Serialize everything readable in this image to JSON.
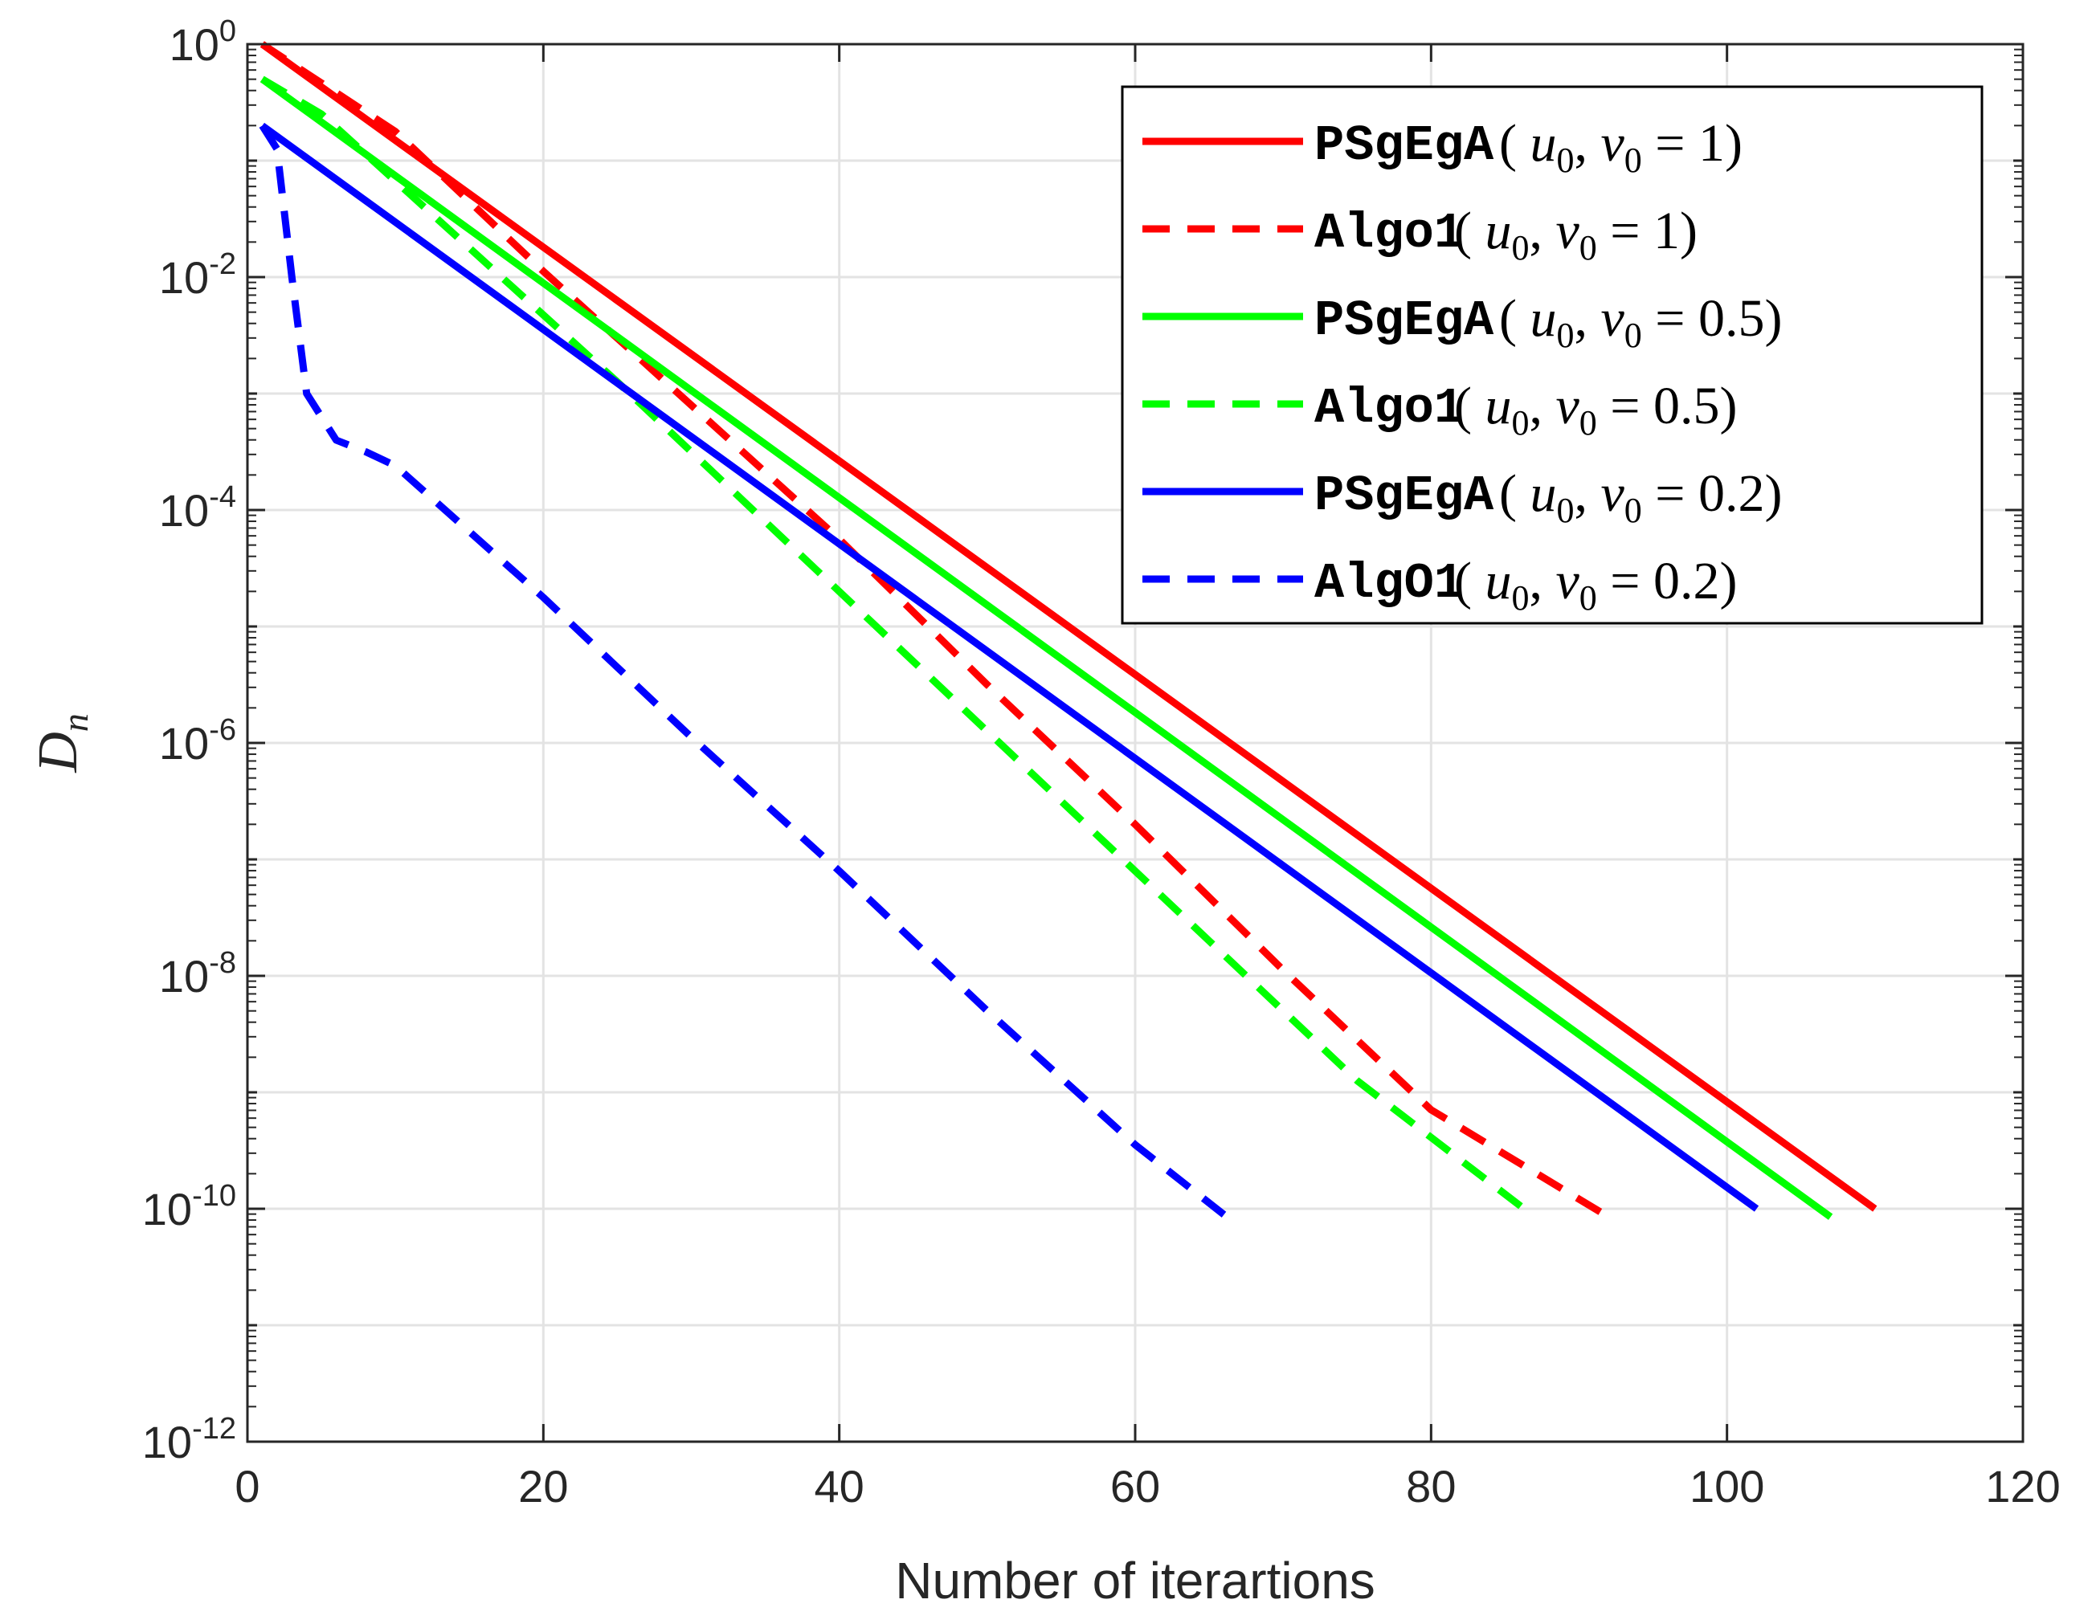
{
  "chart_data": {
    "type": "line",
    "xlabel": "Number of iterartions",
    "ylabel": "D",
    "ylabel_subscript": "n",
    "yscale": "log",
    "xlim": [
      0,
      120
    ],
    "ylim_exponent": [
      -12,
      0
    ],
    "x_ticks": [
      "0",
      "20",
      "40",
      "60",
      "80",
      "100",
      "120"
    ],
    "y_ticks": [
      {
        "base": "10",
        "exp": "0"
      },
      {
        "base": "10",
        "exp": "-2"
      },
      {
        "base": "10",
        "exp": "-4"
      },
      {
        "base": "10",
        "exp": "-6"
      },
      {
        "base": "10",
        "exp": "-8"
      },
      {
        "base": "10",
        "exp": "-10"
      },
      {
        "base": "10",
        "exp": "-12"
      }
    ],
    "grid": true,
    "legend_position": "top-right",
    "series": [
      {
        "name": "PSgEgA (u0, v0 = 1)",
        "label_alg": "PSgEgA",
        "label_cond": "= 1)",
        "color": "#ff0000",
        "style": "solid",
        "x": [
          1,
          110
        ],
        "log10_y": [
          0,
          -10
        ]
      },
      {
        "name": "Algo1 (u0, v0 = 1)",
        "label_alg": "Algo1",
        "label_cond": "= 1)",
        "color": "#ff0000",
        "style": "dashed",
        "x": [
          1,
          10,
          20,
          30,
          40,
          50,
          60,
          70,
          80,
          92
        ],
        "log10_y": [
          0,
          -0.75,
          -1.95,
          -3.1,
          -4.25,
          -5.5,
          -6.7,
          -7.95,
          -9.15,
          -10.07
        ]
      },
      {
        "name": "PSgEgA (u0, v0 = 0.5)",
        "label_alg": "PSgEgA",
        "label_cond": "= 0.5)",
        "color": "#00ff00",
        "style": "solid",
        "x": [
          1,
          107
        ],
        "log10_y": [
          -0.3,
          -10.07
        ]
      },
      {
        "name": "Algo1 (u0, v0 = 0.5)",
        "label_alg": "Algo1",
        "label_cond": "= 0.5)",
        "color": "#00ff00",
        "style": "dashed",
        "x": [
          1,
          5,
          15,
          25,
          35,
          45,
          55,
          65,
          75,
          87
        ],
        "log10_y": [
          -0.3,
          -0.6,
          -1.75,
          -2.9,
          -4.1,
          -5.3,
          -6.5,
          -7.7,
          -8.9,
          -10.07
        ]
      },
      {
        "name": "PSgEgA (u0, v0 = 0.2)",
        "label_alg": "PSgEgA",
        "label_cond": "= 0.2)",
        "color": "#0000ff",
        "style": "solid",
        "x": [
          1,
          102
        ],
        "log10_y": [
          -0.7,
          -10
        ]
      },
      {
        "name": "AlgO1 (u0, v0 = 0.2)",
        "label_alg": "AlgO1",
        "label_cond": "= 0.2)",
        "color": "#0000ff",
        "style": "dashed",
        "x": [
          1,
          2,
          3,
          4,
          6,
          8,
          10,
          20,
          30,
          40,
          50,
          60,
          66
        ],
        "log10_y": [
          -0.7,
          -0.9,
          -2.0,
          -3.0,
          -3.4,
          -3.5,
          -3.62,
          -4.75,
          -5.95,
          -7.1,
          -8.3,
          -9.45,
          -10.05
        ]
      }
    ]
  },
  "legend_math": {
    "u": "u",
    "v": "v",
    "sub": "0",
    "open": "(",
    "comma": ","
  }
}
